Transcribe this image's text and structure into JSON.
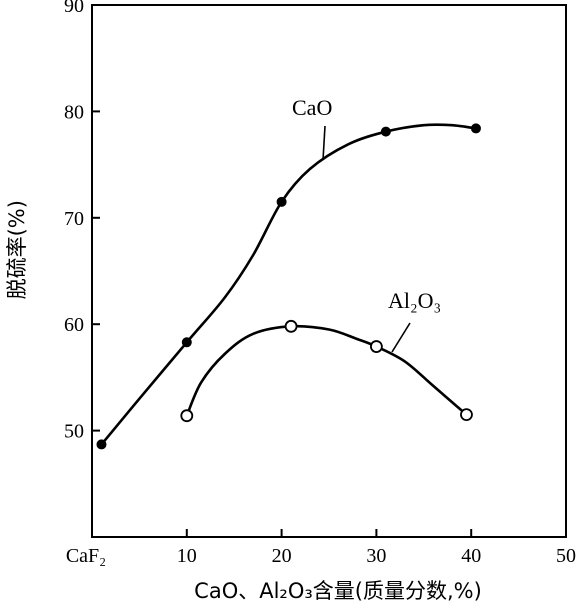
{
  "chart_data": {
    "type": "line",
    "xlabel": "CaO、Al₂O₃含量(质量分数,%)",
    "ylabel": "脱硫率(%)",
    "xlim": [
      0,
      50
    ],
    "ylim": [
      40,
      90
    ],
    "x_ticks": [
      {
        "value": 0,
        "label": "CaF₂"
      },
      {
        "value": 10,
        "label": "10"
      },
      {
        "value": 20,
        "label": "20"
      },
      {
        "value": 30,
        "label": "30"
      },
      {
        "value": 40,
        "label": "40"
      },
      {
        "value": 50,
        "label": "50"
      }
    ],
    "y_ticks": [
      {
        "value": 50,
        "label": "50"
      },
      {
        "value": 60,
        "label": "60"
      },
      {
        "value": 70,
        "label": "70"
      },
      {
        "value": 80,
        "label": "80"
      },
      {
        "value": 90,
        "label": "90"
      }
    ],
    "grid": false,
    "series": [
      {
        "name": "CaO",
        "marker": "filled-circle",
        "points": [
          {
            "x": 1,
            "y": 48.7
          },
          {
            "x": 10,
            "y": 58.3
          },
          {
            "x": 20,
            "y": 71.5
          },
          {
            "x": 31,
            "y": 78.1
          },
          {
            "x": 40.5,
            "y": 78.4
          }
        ],
        "curve": [
          [
            1,
            48.7
          ],
          [
            5,
            53
          ],
          [
            10,
            58.3
          ],
          [
            14,
            62.5
          ],
          [
            17,
            66.5
          ],
          [
            20,
            71.5
          ],
          [
            23,
            74.6
          ],
          [
            27,
            76.9
          ],
          [
            31,
            78.1
          ],
          [
            35,
            78.7
          ],
          [
            38,
            78.7
          ],
          [
            40.5,
            78.4
          ]
        ]
      },
      {
        "name": "Al₂O₃",
        "marker": "open-circle",
        "points": [
          {
            "x": 10,
            "y": 51.4
          },
          {
            "x": 21,
            "y": 59.8
          },
          {
            "x": 30,
            "y": 57.9
          },
          {
            "x": 39.5,
            "y": 51.5
          }
        ],
        "curve": [
          [
            10,
            51.4
          ],
          [
            11.5,
            54.5
          ],
          [
            14,
            57.2
          ],
          [
            17,
            59.1
          ],
          [
            21,
            59.8
          ],
          [
            25,
            59.5
          ],
          [
            28,
            58.6
          ],
          [
            30,
            57.9
          ],
          [
            33,
            56.5
          ],
          [
            36,
            54.2
          ],
          [
            39.5,
            51.5
          ]
        ]
      }
    ]
  }
}
